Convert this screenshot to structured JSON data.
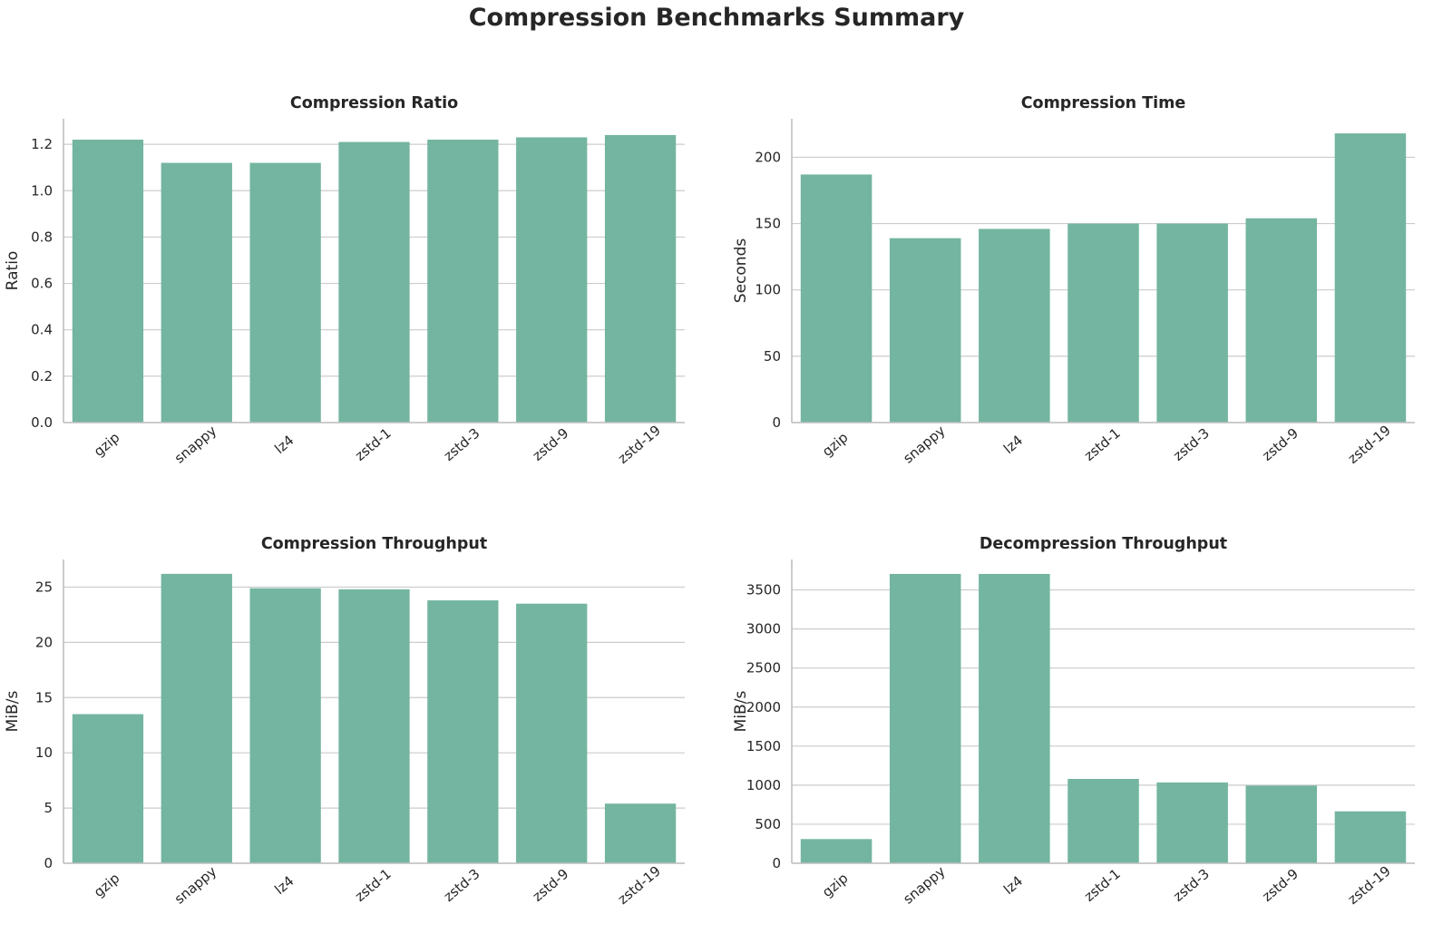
{
  "figure": {
    "title": "Compression Benchmarks Summary"
  },
  "colors": {
    "bar": "#73b5a0"
  },
  "chart_data": [
    {
      "type": "bar",
      "title": "Compression Ratio",
      "xlabel": "",
      "ylabel": "Ratio",
      "categories": [
        "gzip",
        "snappy",
        "lz4",
        "zstd-1",
        "zstd-3",
        "zstd-9",
        "zstd-19"
      ],
      "values": [
        1.22,
        1.12,
        1.12,
        1.21,
        1.22,
        1.23,
        1.24
      ],
      "ylim": [
        0,
        1.31
      ],
      "yticks": [
        0.0,
        0.2,
        0.4,
        0.6,
        0.8,
        1.0,
        1.2
      ],
      "ytick_labels": [
        "0.0",
        "0.2",
        "0.4",
        "0.6",
        "0.8",
        "1.0",
        "1.2"
      ],
      "grid": true
    },
    {
      "type": "bar",
      "title": "Compression Time",
      "xlabel": "",
      "ylabel": "Seconds",
      "categories": [
        "gzip",
        "snappy",
        "lz4",
        "zstd-1",
        "zstd-3",
        "zstd-9",
        "zstd-19"
      ],
      "values": [
        187,
        139,
        146,
        150,
        150,
        154,
        218
      ],
      "ylim": [
        0,
        229
      ],
      "yticks": [
        0,
        50,
        100,
        150,
        200
      ],
      "ytick_labels": [
        "0",
        "50",
        "100",
        "150",
        "200"
      ],
      "grid": true
    },
    {
      "type": "bar",
      "title": "Compression Throughput",
      "xlabel": "",
      "ylabel": "MiB/s",
      "categories": [
        "gzip",
        "snappy",
        "lz4",
        "zstd-1",
        "zstd-3",
        "zstd-9",
        "zstd-19"
      ],
      "values": [
        13.5,
        26.2,
        24.9,
        24.8,
        23.8,
        23.5,
        5.4
      ],
      "ylim": [
        0,
        27.5
      ],
      "yticks": [
        0,
        5,
        10,
        15,
        20,
        25
      ],
      "ytick_labels": [
        "0",
        "5",
        "10",
        "15",
        "20",
        "25"
      ],
      "grid": true
    },
    {
      "type": "bar",
      "title": "Decompression Throughput",
      "xlabel": "",
      "ylabel": "MiB/s",
      "categories": [
        "gzip",
        "snappy",
        "lz4",
        "zstd-1",
        "zstd-3",
        "zstd-9",
        "zstd-19"
      ],
      "values": [
        310,
        3705,
        3705,
        1080,
        1035,
        995,
        665
      ],
      "ylim": [
        0,
        3890
      ],
      "yticks": [
        0,
        500,
        1000,
        1500,
        2000,
        2500,
        3000,
        3500
      ],
      "ytick_labels": [
        "0",
        "500",
        "1000",
        "1500",
        "2000",
        "2500",
        "3000",
        "3500"
      ],
      "grid": true
    }
  ]
}
